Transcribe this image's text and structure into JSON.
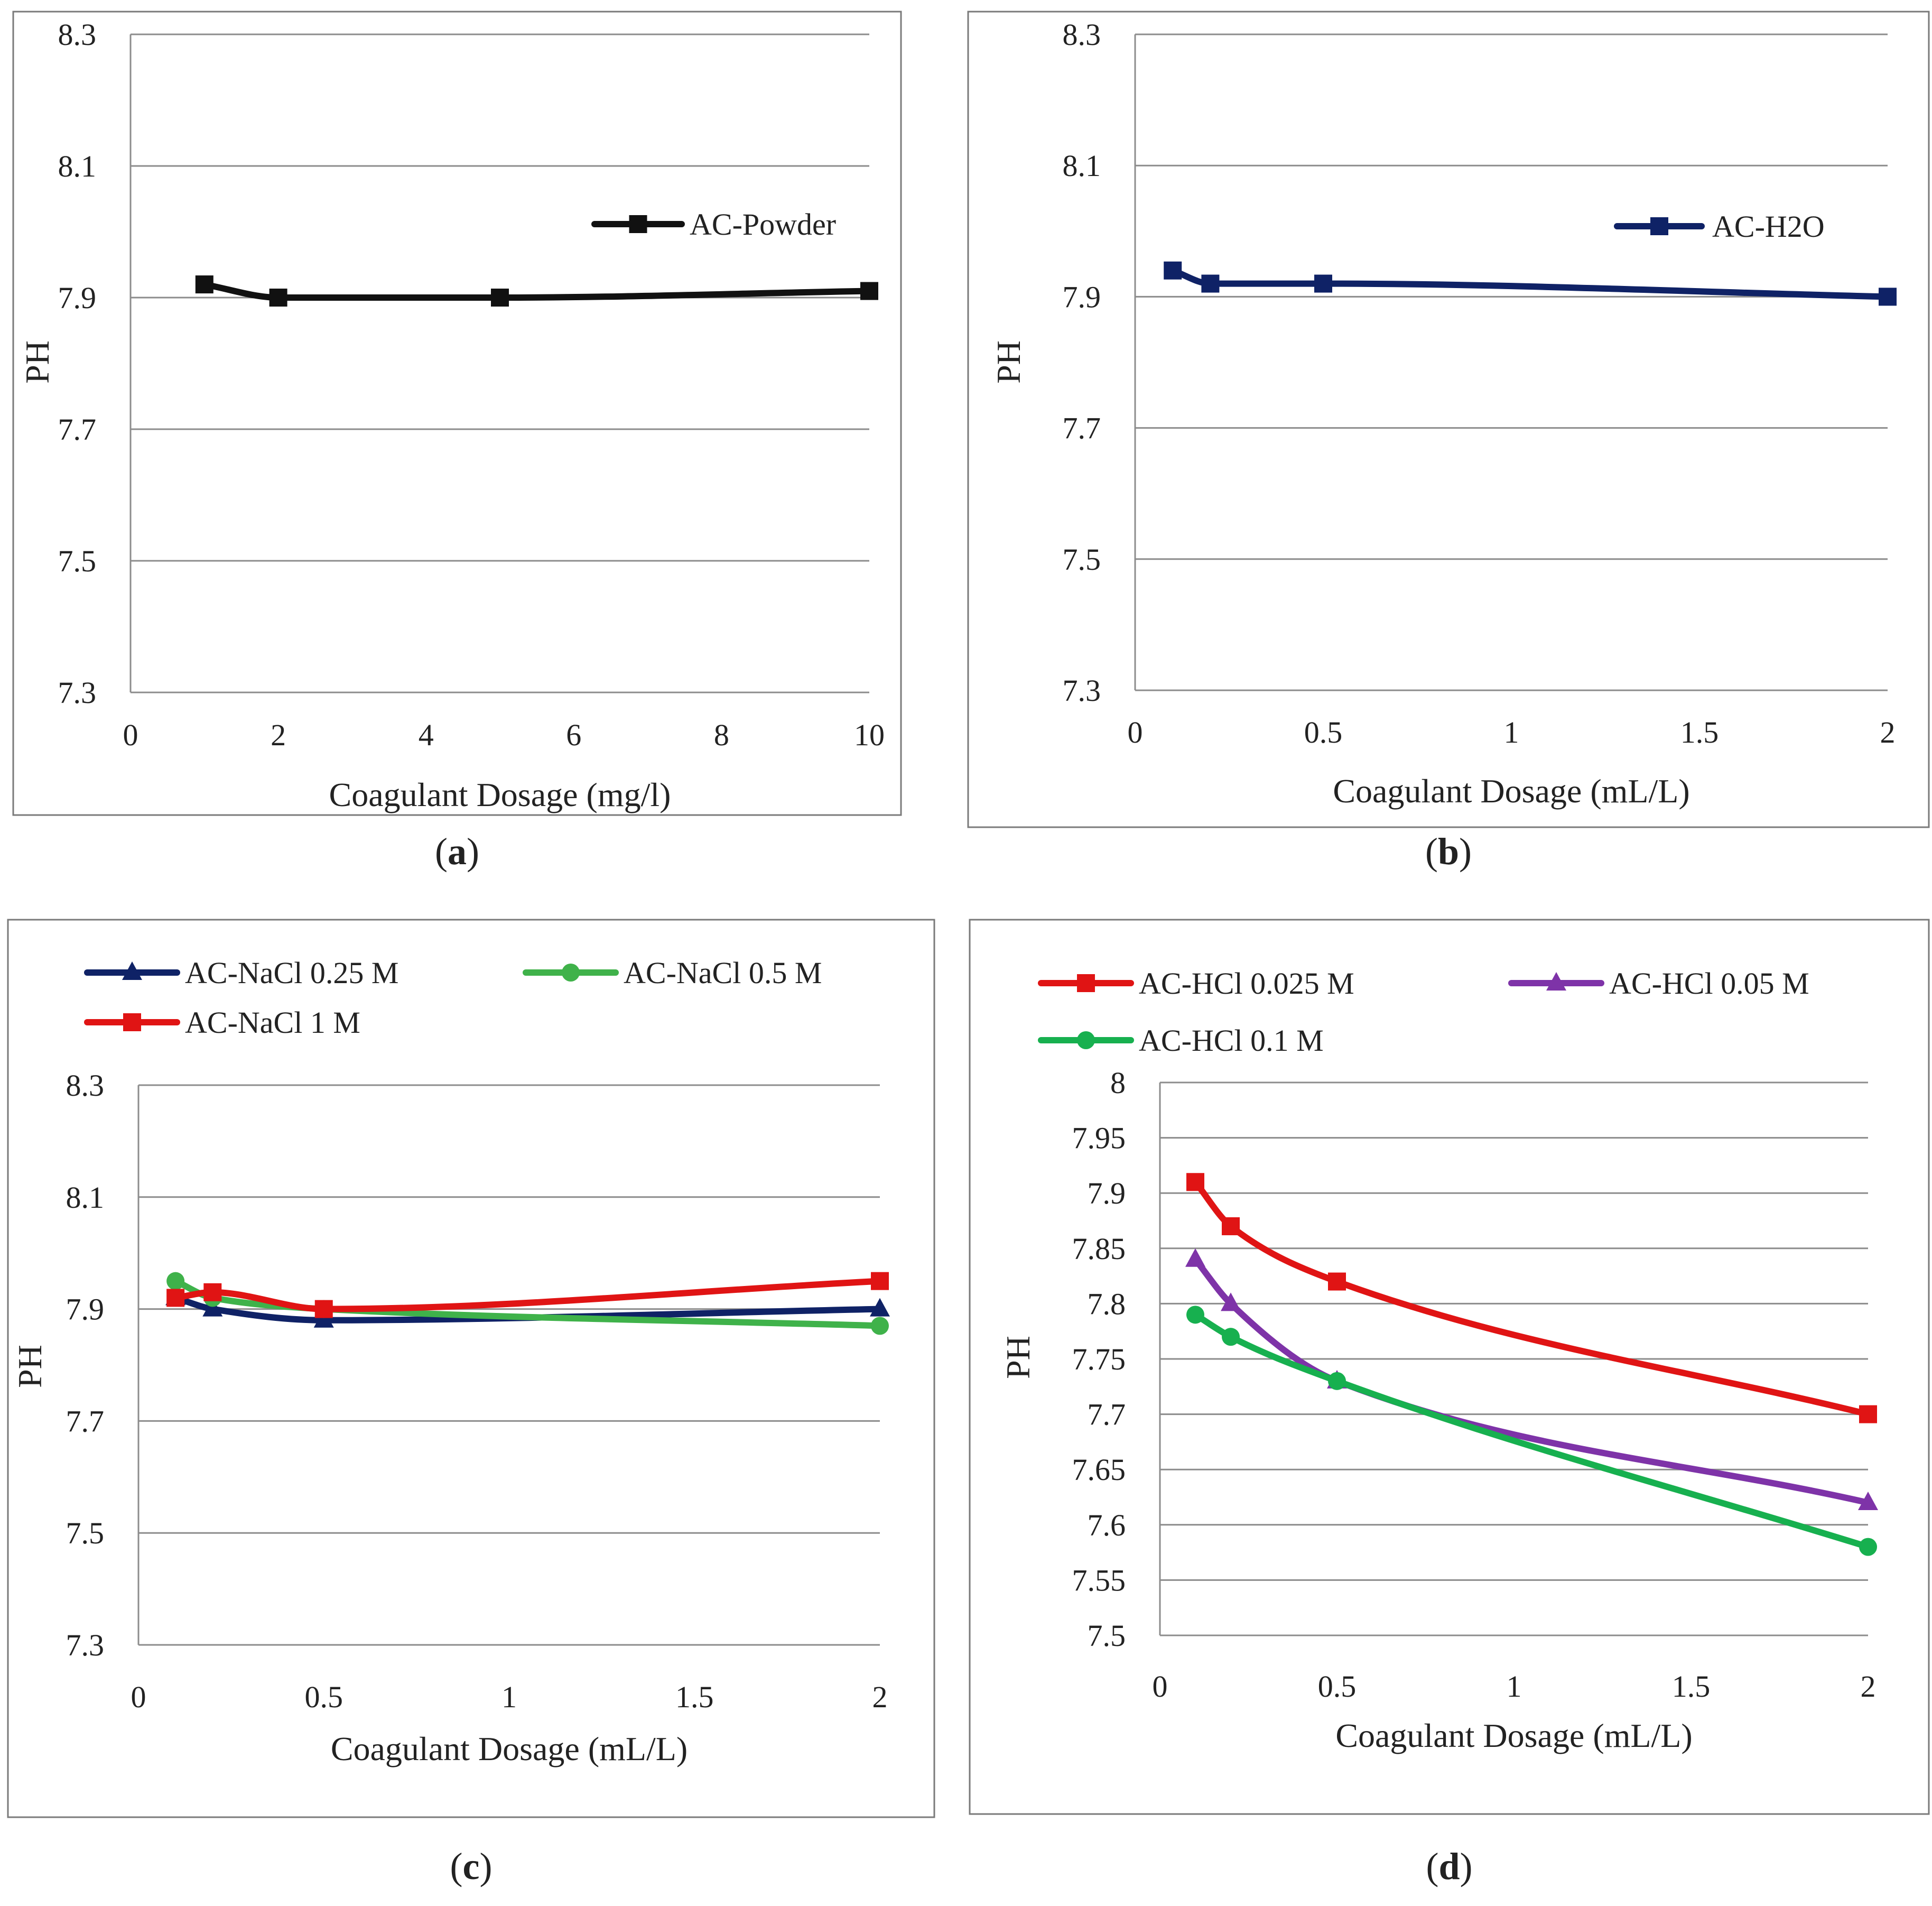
{
  "colors": {
    "black": "#111111",
    "navy": "#0f2266",
    "green": "#3fb24a",
    "red": "#e01414",
    "purple": "#7e33a8",
    "green_d": "#17b04f",
    "grid": "#8c8c8c",
    "frame": "#7a7a7a"
  },
  "chart_data": [
    {
      "id": "a",
      "caption": "a",
      "type": "line",
      "xlabel": "Coagulant Dosage (mg/l)",
      "ylabel": "PH",
      "xlim": [
        0,
        10
      ],
      "xticks": [
        0,
        2,
        4,
        6,
        8,
        10
      ],
      "ylim": [
        7.3,
        8.3
      ],
      "yticks": [
        7.3,
        7.5,
        7.7,
        7.9,
        8.1,
        8.3
      ],
      "ytick_labels": [
        "7.3",
        "7.5",
        "7.7",
        "7.9",
        "8.1",
        "8.3"
      ],
      "legend": "inside-top-right",
      "series": [
        {
          "name": "AC-Powder",
          "color": "black",
          "marker": "square",
          "x": [
            1,
            2,
            5,
            10
          ],
          "y": [
            7.92,
            7.9,
            7.9,
            7.91
          ]
        }
      ]
    },
    {
      "id": "b",
      "caption": "b",
      "type": "line",
      "xlabel": "Coagulant Dosage (mL/L)",
      "ylabel": "PH",
      "xlim": [
        0,
        2
      ],
      "xticks": [
        0,
        0.5,
        1,
        1.5,
        2
      ],
      "ylim": [
        7.3,
        8.3
      ],
      "yticks": [
        7.3,
        7.5,
        7.7,
        7.9,
        8.1,
        8.3
      ],
      "ytick_labels": [
        "7.3",
        "7.5",
        "7.7",
        "7.9",
        "8.1",
        "8.3"
      ],
      "legend": "inside-top-right",
      "series": [
        {
          "name": "AC-H2O",
          "color": "navy",
          "marker": "square",
          "x": [
            0.1,
            0.2,
            0.5,
            2
          ],
          "y": [
            7.94,
            7.92,
            7.92,
            7.9
          ]
        }
      ]
    },
    {
      "id": "c",
      "caption": "c",
      "type": "line",
      "xlabel": "Coagulant Dosage (mL/L)",
      "ylabel": "PH",
      "xlim": [
        0,
        2
      ],
      "xticks": [
        0,
        0.5,
        1,
        1.5,
        2
      ],
      "ylim": [
        7.3,
        8.3
      ],
      "yticks": [
        7.3,
        7.5,
        7.7,
        7.9,
        8.1,
        8.3
      ],
      "ytick_labels": [
        "7.3",
        "7.5",
        "7.7",
        "7.9",
        "8.1",
        "8.3"
      ],
      "legend": "top",
      "series": [
        {
          "name": "AC-NaCl 0.25 M",
          "color": "navy",
          "marker": "triangle",
          "x": [
            0.1,
            0.2,
            0.5,
            2
          ],
          "y": [
            7.92,
            7.9,
            7.88,
            7.9
          ]
        },
        {
          "name": "AC-NaCl 0.5 M",
          "color": "green",
          "marker": "circle",
          "x": [
            0.1,
            0.2,
            0.5,
            2
          ],
          "y": [
            7.95,
            7.92,
            7.9,
            7.87
          ]
        },
        {
          "name": "AC-NaCl 1 M",
          "color": "red",
          "marker": "square",
          "x": [
            0.1,
            0.2,
            0.5,
            2
          ],
          "y": [
            7.92,
            7.93,
            7.9,
            7.95
          ]
        }
      ]
    },
    {
      "id": "d",
      "caption": "d",
      "type": "line",
      "xlabel": "Coagulant Dosage (mL/L)",
      "ylabel": "PH",
      "xlim": [
        0,
        2
      ],
      "xticks": [
        0,
        0.5,
        1,
        1.5,
        2
      ],
      "ylim": [
        7.5,
        8.0
      ],
      "yticks": [
        7.5,
        7.55,
        7.6,
        7.65,
        7.7,
        7.75,
        7.8,
        7.85,
        7.9,
        7.95,
        8.0
      ],
      "ytick_labels": [
        "7.5",
        "7.55",
        "7.6",
        "7.65",
        "7.7",
        "7.75",
        "7.8",
        "7.85",
        "7.9",
        "7.95",
        "8"
      ],
      "legend": "top",
      "series": [
        {
          "name": "AC-HCl 0.025 M",
          "color": "red",
          "marker": "square",
          "x": [
            0.1,
            0.2,
            0.5,
            2
          ],
          "y": [
            7.91,
            7.87,
            7.82,
            7.7
          ]
        },
        {
          "name": "AC-HCl 0.05 M",
          "color": "purple",
          "marker": "triangle",
          "x": [
            0.1,
            0.2,
            0.5,
            2
          ],
          "y": [
            7.84,
            7.8,
            7.73,
            7.62
          ]
        },
        {
          "name": "AC-HCl 0.1 M",
          "color": "green_d",
          "marker": "circle",
          "x": [
            0.1,
            0.2,
            0.5,
            2
          ],
          "y": [
            7.79,
            7.77,
            7.73,
            7.58
          ]
        }
      ]
    }
  ]
}
